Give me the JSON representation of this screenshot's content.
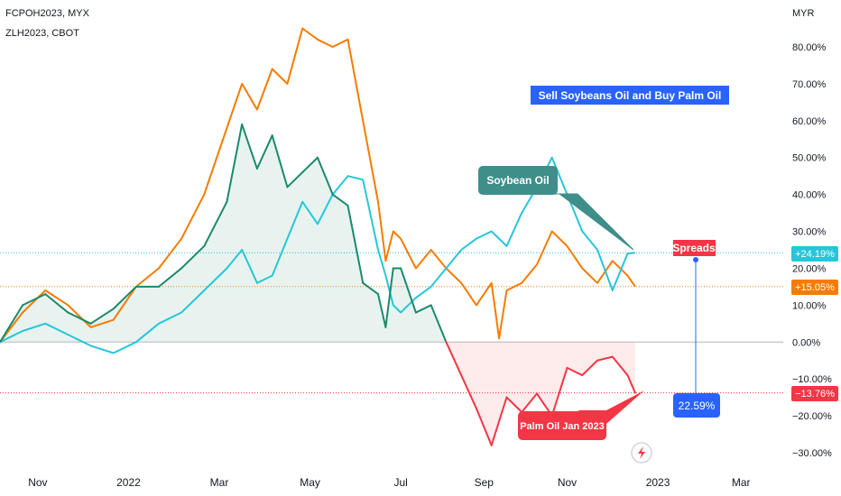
{
  "legend": {
    "series1": "FCPOH2023, MYX",
    "series2": "ZLH2023, CBOT"
  },
  "axis_currency": "MYR",
  "annotations": {
    "headline": "Sell Soybeans Oil and Buy Palm Oil",
    "soybean_callout": "Soybean Oil",
    "palm_callout": "Palm Oil Jan 2023",
    "spreads_label": "Spreads",
    "spread_value": "22.59%"
  },
  "colors": {
    "palm": "#F57C00",
    "soy": "#26C6DA",
    "spread_pos": "#1B8A6B",
    "spread_neg": "#F23645",
    "headline_bg": "#2962FF",
    "spread_box": "#2962FF",
    "soy_box": "#3E8E8A",
    "palm_box": "#F23645"
  },
  "price_badges": {
    "soy": "+24.19%",
    "palm": "+15.05%",
    "spread": "−13.76%"
  },
  "chart_data": {
    "type": "line",
    "y_unit": "percent change",
    "ylim": [
      -32,
      90
    ],
    "y_ticks": [
      80,
      70,
      60,
      50,
      40,
      30,
      20,
      10,
      0,
      -10,
      -20,
      -30
    ],
    "y_tick_labels": [
      "80.00%",
      "70.00%",
      "60.00%",
      "50.00%",
      "40.00%",
      "30.00%",
      "20.00%",
      "10.00%",
      "0.00%",
      "−10.00%",
      "−20.00%",
      "−30.00%"
    ],
    "x_ticks": [
      {
        "t": 2,
        "label": "Nov"
      },
      {
        "t": 14,
        "label": "2022"
      },
      {
        "t": 26,
        "label": "Mar"
      },
      {
        "t": 38,
        "label": "May"
      },
      {
        "t": 50,
        "label": "Jul"
      },
      {
        "t": 61,
        "label": "Sep"
      },
      {
        "t": 72,
        "label": "Nov"
      },
      {
        "t": 84,
        "label": "2023"
      },
      {
        "t": 95,
        "label": "Mar"
      }
    ],
    "series": [
      {
        "name": "FCPOH2023, MYX",
        "color": "#F57C00",
        "x": [
          -3,
          0,
          3,
          6,
          9,
          12,
          15,
          18,
          21,
          24,
          27,
          29,
          31,
          33,
          35,
          37,
          39,
          41,
          43,
          45,
          47,
          48,
          49,
          50,
          52,
          54,
          56,
          58,
          60,
          62,
          63,
          64,
          66,
          68,
          70,
          72,
          74,
          76,
          78,
          80,
          81
        ],
        "values": [
          0,
          8,
          14,
          10,
          4,
          6,
          15,
          20,
          28,
          40,
          58,
          70,
          63,
          74,
          70,
          85,
          82,
          80,
          82,
          60,
          38,
          22,
          30,
          28,
          20,
          25,
          20,
          16,
          10,
          16,
          1,
          14,
          16,
          21,
          30,
          26,
          20,
          16,
          22,
          18,
          15.05
        ]
      },
      {
        "name": "ZLH2023, CBOT",
        "color": "#26C6DA",
        "x": [
          -3,
          0,
          3,
          6,
          9,
          12,
          15,
          18,
          21,
          24,
          27,
          29,
          31,
          33,
          35,
          37,
          39,
          41,
          43,
          45,
          47,
          48,
          49,
          50,
          52,
          54,
          56,
          58,
          60,
          62,
          64,
          66,
          68,
          70,
          72,
          74,
          76,
          78,
          80,
          81
        ],
        "values": [
          0,
          3,
          5,
          2,
          -1,
          -3,
          0,
          5,
          8,
          14,
          20,
          25,
          16,
          18,
          28,
          38,
          32,
          40,
          45,
          44,
          25,
          18,
          10,
          8,
          12,
          15,
          20,
          25,
          28,
          30,
          26,
          35,
          42,
          50,
          40,
          30,
          25,
          14,
          24,
          24.19
        ]
      },
      {
        "name": "Spread",
        "color": "#1B8A6B",
        "x": [
          -3,
          0,
          3,
          6,
          9,
          12,
          15,
          18,
          21,
          24,
          27,
          29,
          31,
          33,
          35,
          37,
          39,
          41,
          43,
          45,
          47,
          48,
          49,
          50,
          52,
          54,
          56,
          58,
          60,
          62,
          64,
          66,
          68,
          70,
          72,
          74,
          76,
          78,
          80,
          81
        ],
        "values": [
          0,
          10,
          13,
          8,
          5,
          9,
          15,
          15,
          20,
          26,
          38,
          59,
          47,
          56,
          42,
          46,
          50,
          40,
          37,
          16,
          13,
          4,
          20,
          20,
          8,
          10,
          0,
          -9,
          -18,
          -28,
          -15,
          -19,
          -14,
          -20,
          -7,
          -9,
          -5,
          -4,
          -9,
          -13.76
        ]
      }
    ]
  }
}
